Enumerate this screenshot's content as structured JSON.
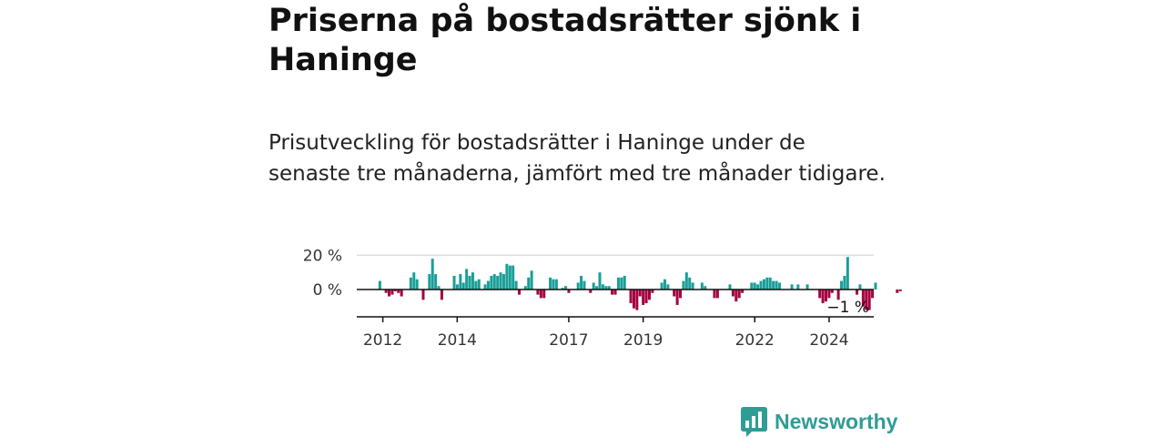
{
  "header": {
    "title": "Priserna på bostadsrätter sjönk i Haninge",
    "subtitle": "Prisutveckling för bostadsrätter i Haninge under de senaste tre månaderna, jämfört med tre månader tidigare."
  },
  "brand": {
    "name": "Newsworthy",
    "icon": "chart-bubble-icon",
    "color": "#2f9c95"
  },
  "colors": {
    "positive": "#1a9e98",
    "negative": "#a3003f",
    "grid": "#dddddd",
    "axis": "#111111"
  },
  "chart_data": {
    "type": "bar",
    "title": "",
    "xlabel": "",
    "ylabel": "",
    "y_tick_labels": [
      "20 %",
      "0 %"
    ],
    "y_tick_values": [
      20,
      0
    ],
    "ylim": [
      -15,
      20
    ],
    "x_tick_labels": [
      "2012",
      "2014",
      "2017",
      "2019",
      "2022",
      "2024"
    ],
    "x_tick_values": [
      2012.0,
      2014.0,
      2017.0,
      2019.0,
      2022.0,
      2024.0
    ],
    "start": 2011.92,
    "step": 0.0833,
    "xlim": [
      2011.3,
      2025.2
    ],
    "last_label": "−1 %",
    "series": [
      {
        "name": "Prisutveckling (%)",
        "values": [
          5,
          0,
          -2,
          -4,
          -3,
          -1,
          -2,
          -4,
          0,
          0,
          7,
          10,
          6,
          0,
          -6,
          0,
          9,
          18,
          9,
          2,
          -6,
          0,
          0,
          0,
          8,
          3,
          9,
          4,
          12,
          8,
          10,
          5,
          6,
          0,
          3,
          5,
          8,
          9,
          8,
          10,
          9,
          15,
          14,
          14,
          5,
          -3,
          0,
          2,
          7,
          11,
          0,
          -3,
          -5,
          -5,
          0,
          7,
          6,
          6,
          0,
          1,
          2,
          -2,
          0,
          0,
          4,
          8,
          5,
          0,
          -2,
          4,
          2,
          10,
          3,
          2,
          2,
          -3,
          -3,
          7,
          7,
          8,
          0,
          -8,
          -11,
          -12,
          -4,
          -9,
          -8,
          -6,
          -2,
          0,
          0,
          4,
          6,
          3,
          0,
          -4,
          -9,
          -5,
          5,
          10,
          7,
          4,
          0,
          0,
          4,
          2,
          0,
          0,
          -5,
          -5,
          0,
          0,
          0,
          3,
          -4,
          -7,
          -5,
          -2,
          0,
          0,
          4,
          4,
          3,
          5,
          6,
          7,
          7,
          5,
          5,
          4,
          0,
          0,
          0,
          3,
          0,
          3,
          0,
          0,
          3,
          0,
          0,
          0,
          -5,
          -8,
          -7,
          -5,
          -2,
          0,
          -6,
          5,
          8,
          19,
          0,
          0,
          -3,
          3,
          -10,
          -12,
          -12,
          -5,
          4,
          0,
          0,
          0,
          0,
          0,
          0,
          -2,
          -1,
          0
        ]
      }
    ]
  }
}
